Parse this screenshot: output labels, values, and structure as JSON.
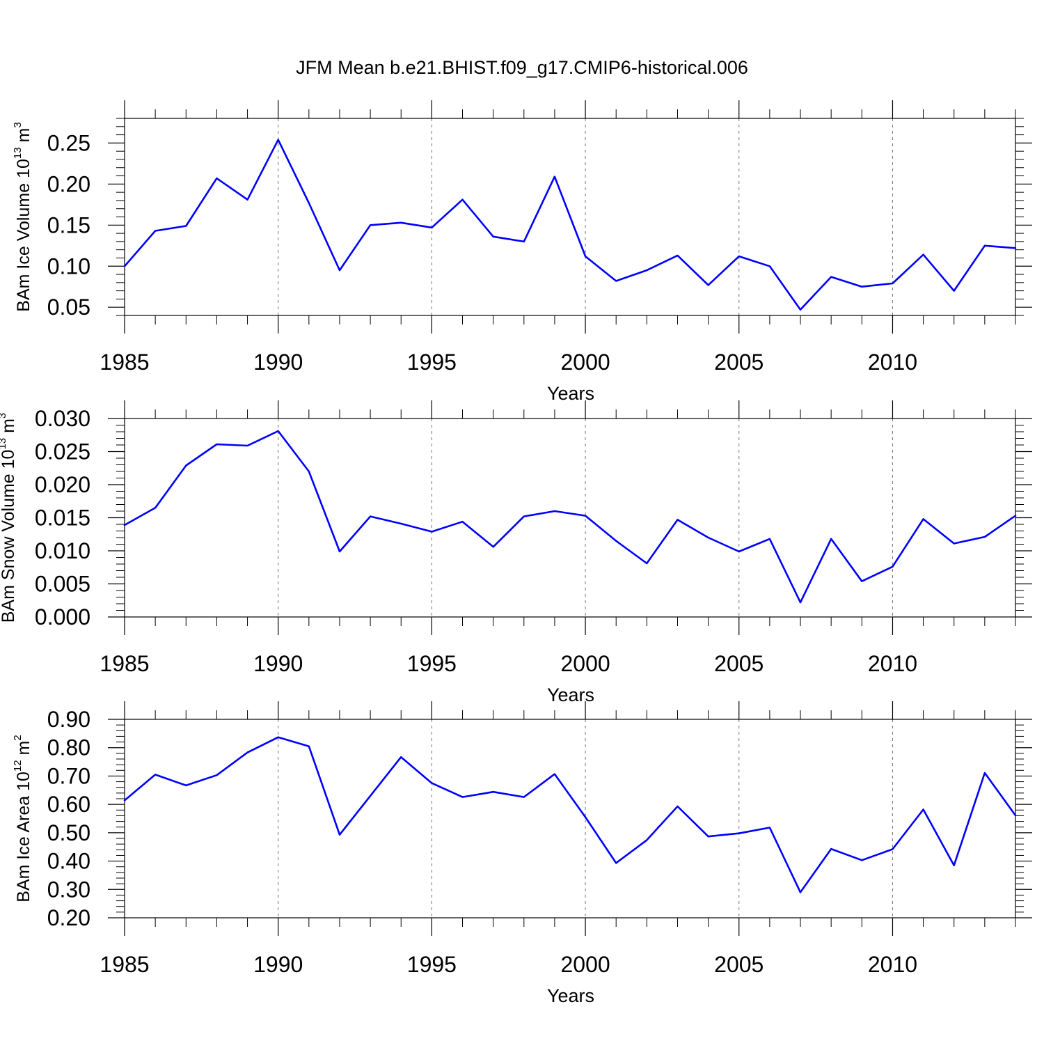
{
  "title": "JFM Mean b.e21.BHIST.f09_g17.CMIP6-historical.006",
  "line_color": "#0000ff",
  "chart_data": [
    {
      "type": "line",
      "title": "JFM Mean b.e21.BHIST.f09_g17.CMIP6-historical.006",
      "xlabel": "Years",
      "ylabel": {
        "pre": "BAm Ice Volume 10",
        "exp": "13",
        "post": " m",
        "unit_exp": "3"
      },
      "xlim": [
        1985,
        2014
      ],
      "ylim": [
        0.04,
        0.28
      ],
      "xticks": [
        1985,
        1990,
        1995,
        2000,
        2005,
        2010
      ],
      "xtick_labels": [
        "1985",
        "1990",
        "1995",
        "2000",
        "2005",
        "2010"
      ],
      "yticks": [
        0.05,
        0.1,
        0.15,
        0.2,
        0.25
      ],
      "ytick_labels": [
        "0.05",
        "0.10",
        "0.15",
        "0.20",
        "0.25"
      ],
      "grid": "vertical dashed at major x ticks",
      "x": [
        1985,
        1986,
        1987,
        1988,
        1989,
        1990,
        1991,
        1992,
        1993,
        1994,
        1995,
        1996,
        1997,
        1998,
        1999,
        2000,
        2001,
        2002,
        2003,
        2004,
        2005,
        2006,
        2007,
        2008,
        2009,
        2010,
        2011,
        2012,
        2013,
        2014
      ],
      "values": [
        0.1,
        0.143,
        0.149,
        0.207,
        0.181,
        0.254,
        0.177,
        0.095,
        0.15,
        0.153,
        0.147,
        0.181,
        0.136,
        0.13,
        0.209,
        0.112,
        0.082,
        0.095,
        0.113,
        0.077,
        0.112,
        0.1,
        0.047,
        0.087,
        0.075,
        0.079,
        0.114,
        0.07,
        0.125,
        0.122
      ]
    },
    {
      "type": "line",
      "xlabel": "Years",
      "ylabel": {
        "pre": "BAm Snow Volume 10",
        "exp": "13",
        "post": " m",
        "unit_exp": "3"
      },
      "xlim": [
        1985,
        2014
      ],
      "ylim": [
        0.0,
        0.03
      ],
      "xticks": [
        1985,
        1990,
        1995,
        2000,
        2005,
        2010
      ],
      "xtick_labels": [
        "1985",
        "1990",
        "1995",
        "2000",
        "2005",
        "2010"
      ],
      "yticks": [
        0.0,
        0.005,
        0.01,
        0.015,
        0.02,
        0.025,
        0.03
      ],
      "ytick_labels": [
        "0.000",
        "0.005",
        "0.010",
        "0.015",
        "0.020",
        "0.025",
        "0.030"
      ],
      "grid": "vertical dashed at major x ticks",
      "x": [
        1985,
        1986,
        1987,
        1988,
        1989,
        1990,
        1991,
        1992,
        1993,
        1994,
        1995,
        1996,
        1997,
        1998,
        1999,
        2000,
        2001,
        2002,
        2003,
        2004,
        2005,
        2006,
        2007,
        2008,
        2009,
        2010,
        2011,
        2012,
        2013,
        2014
      ],
      "values": [
        0.0139,
        0.0165,
        0.0229,
        0.0261,
        0.0259,
        0.0281,
        0.022,
        0.0099,
        0.0152,
        0.0141,
        0.0129,
        0.0144,
        0.0106,
        0.0152,
        0.016,
        0.0153,
        0.0115,
        0.0081,
        0.0147,
        0.012,
        0.0099,
        0.0118,
        0.0022,
        0.0118,
        0.0054,
        0.0076,
        0.0148,
        0.0111,
        0.0121,
        0.0153
      ]
    },
    {
      "type": "line",
      "xlabel": "Years",
      "ylabel": {
        "pre": "BAm Ice Area 10",
        "exp": "12",
        "post": " m",
        "unit_exp": "2"
      },
      "xlim": [
        1985,
        2014
      ],
      "ylim": [
        0.2,
        0.9
      ],
      "xticks": [
        1985,
        1990,
        1995,
        2000,
        2005,
        2010
      ],
      "xtick_labels": [
        "1985",
        "1990",
        "1995",
        "2000",
        "2005",
        "2010"
      ],
      "yticks": [
        0.2,
        0.3,
        0.4,
        0.5,
        0.6,
        0.7,
        0.8,
        0.9
      ],
      "ytick_labels": [
        "0.20",
        "0.30",
        "0.40",
        "0.50",
        "0.60",
        "0.70",
        "0.80",
        "0.90"
      ],
      "grid": "vertical dashed at major x ticks",
      "x": [
        1985,
        1986,
        1987,
        1988,
        1989,
        1990,
        1991,
        1992,
        1993,
        1994,
        1995,
        1996,
        1997,
        1998,
        1999,
        2000,
        2001,
        2002,
        2003,
        2004,
        2005,
        2006,
        2007,
        2008,
        2009,
        2010,
        2011,
        2012,
        2013,
        2014
      ],
      "values": [
        0.614,
        0.705,
        0.667,
        0.703,
        0.783,
        0.837,
        0.805,
        0.493,
        0.63,
        0.767,
        0.675,
        0.626,
        0.644,
        0.626,
        0.707,
        0.555,
        0.393,
        0.474,
        0.593,
        0.487,
        0.498,
        0.518,
        0.29,
        0.443,
        0.403,
        0.442,
        0.582,
        0.385,
        0.711,
        0.561
      ]
    }
  ]
}
